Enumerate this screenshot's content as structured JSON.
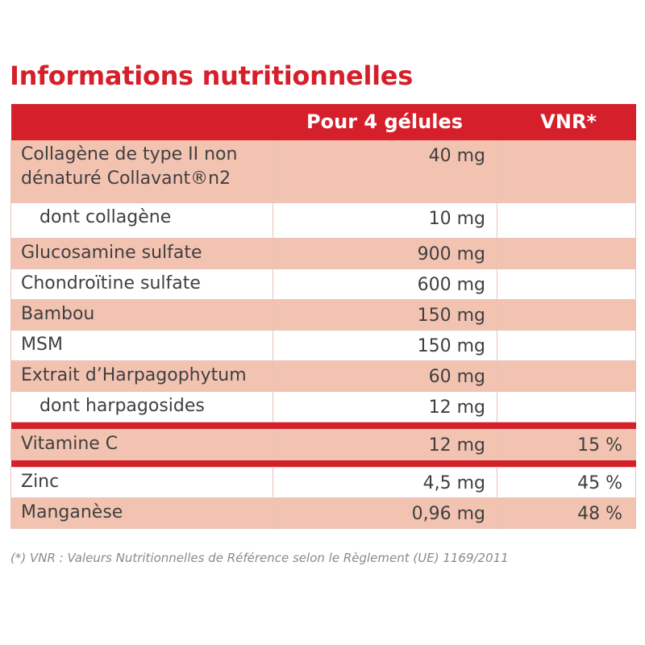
{
  "title": "Informations nutritionnelles",
  "colors": {
    "accent": "#d5202b",
    "row_shaded": "#f3c3b1",
    "row_plain": "#ffffff",
    "text": "#3f3f3f",
    "footnote": "#8a8a8a"
  },
  "table": {
    "headers": [
      "",
      "Pour 4 gélules",
      "VNR*"
    ],
    "rows": [
      {
        "name": "Collagène de type II non dénaturé Collavant®n2",
        "amount": "40 mg",
        "vnr": "",
        "shaded": true,
        "indent": false
      },
      {
        "name": "dont collagène",
        "amount": "10 mg",
        "vnr": "",
        "shaded": false,
        "indent": true
      },
      {
        "name": "Glucosamine sulfate",
        "amount": "900 mg",
        "vnr": "",
        "shaded": true,
        "indent": false
      },
      {
        "name": "Chondroïtine sulfate",
        "amount": "600 mg",
        "vnr": "",
        "shaded": false,
        "indent": false
      },
      {
        "name": "Bambou",
        "amount": "150 mg",
        "vnr": "",
        "shaded": true,
        "indent": false
      },
      {
        "name": "MSM",
        "amount": "150 mg",
        "vnr": "",
        "shaded": false,
        "indent": false
      },
      {
        "name": "Extrait d’Harpagophytum",
        "amount": "60 mg",
        "vnr": "",
        "shaded": true,
        "indent": false
      },
      {
        "name": "dont harpagosides",
        "amount": "12 mg",
        "vnr": "",
        "shaded": false,
        "indent": true
      },
      {
        "name": "Vitamine C",
        "amount": "12 mg",
        "vnr": "15 %",
        "shaded": true,
        "indent": false
      },
      {
        "name": "Zinc",
        "amount": "4,5 mg",
        "vnr": "45 %",
        "shaded": false,
        "indent": false
      },
      {
        "name": "Manganèse",
        "amount": "0,96 mg",
        "vnr": "48 %",
        "shaded": true,
        "indent": false
      }
    ]
  },
  "footnote": "(*) VNR : Valeurs Nutritionnelles de Référence selon le Règlement (UE) 1169/2011"
}
